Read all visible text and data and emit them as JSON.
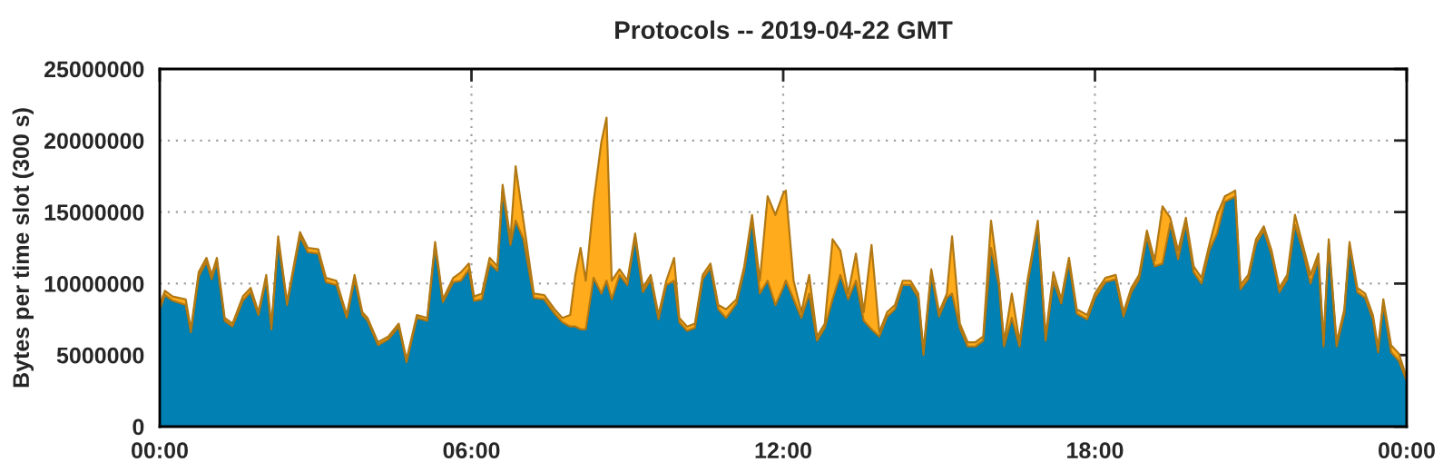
{
  "chart_data": {
    "type": "area",
    "stacked": true,
    "title": "Protocols -- 2019-04-22 GMT",
    "ylabel": "Bytes per time slot (300 s)",
    "x": [
      0,
      0.1,
      0.25,
      0.5,
      0.6,
      0.75,
      0.9,
      1.0,
      1.1,
      1.25,
      1.4,
      1.6,
      1.75,
      1.9,
      2.05,
      2.15,
      2.28,
      2.45,
      2.7,
      2.85,
      3.05,
      3.2,
      3.4,
      3.6,
      3.75,
      3.9,
      4.0,
      4.2,
      4.4,
      4.6,
      4.75,
      4.95,
      5.15,
      5.3,
      5.45,
      5.65,
      5.8,
      5.95,
      6.05,
      6.2,
      6.35,
      6.5,
      6.6,
      6.75,
      6.85,
      7.0,
      7.2,
      7.4,
      7.6,
      7.75,
      7.9,
      8.0,
      8.1,
      8.2,
      8.35,
      8.5,
      8.6,
      8.7,
      8.85,
      9.0,
      9.15,
      9.3,
      9.45,
      9.6,
      9.75,
      9.9,
      10.0,
      10.15,
      10.3,
      10.45,
      10.6,
      10.75,
      10.9,
      11.1,
      11.25,
      11.4,
      11.55,
      11.7,
      11.85,
      12.0,
      12.05,
      12.2,
      12.35,
      12.5,
      12.65,
      12.8,
      12.95,
      13.1,
      13.25,
      13.4,
      13.55,
      13.7,
      13.85,
      14.0,
      14.15,
      14.3,
      14.45,
      14.6,
      14.7,
      14.85,
      15.0,
      15.15,
      15.25,
      15.4,
      15.55,
      15.7,
      15.85,
      16.0,
      16.15,
      16.25,
      16.4,
      16.55,
      16.7,
      16.9,
      17.05,
      17.2,
      17.35,
      17.5,
      17.65,
      17.85,
      18.0,
      18.2,
      18.4,
      18.55,
      18.7,
      18.85,
      19.0,
      19.15,
      19.3,
      19.45,
      19.6,
      19.75,
      19.9,
      20.05,
      20.2,
      20.35,
      20.5,
      20.6,
      20.7,
      20.8,
      20.95,
      21.1,
      21.25,
      21.4,
      21.55,
      21.7,
      21.85,
      22.0,
      22.15,
      22.3,
      22.4,
      22.5,
      22.65,
      22.8,
      22.9,
      23.05,
      23.2,
      23.35,
      23.45,
      23.55,
      23.7,
      23.85,
      24
    ],
    "series": [
      {
        "color": "#0080b3",
        "values": [
          8200000,
          9200000,
          8800000,
          8500000,
          6600000,
          10500000,
          11500000,
          10300000,
          11500000,
          7400000,
          7000000,
          8800000,
          9400000,
          7800000,
          10300000,
          6800000,
          13000000,
          8500000,
          13300000,
          12200000,
          12100000,
          10100000,
          9900000,
          7600000,
          10300000,
          7800000,
          7400000,
          5700000,
          6100000,
          7000000,
          4500000,
          7600000,
          7400000,
          12600000,
          8700000,
          10100000,
          10200000,
          11000000,
          8800000,
          8900000,
          11400000,
          10900000,
          16500000,
          12700000,
          14400000,
          13100000,
          9000000,
          8900000,
          7900000,
          7300000,
          7000000,
          7000000,
          6800000,
          6800000,
          10400000,
          9300000,
          10200000,
          8900000,
          10600000,
          9900000,
          13200000,
          9400000,
          10300000,
          7500000,
          9900000,
          10200000,
          7300000,
          6700000,
          6900000,
          10300000,
          11100000,
          8200000,
          7600000,
          8600000,
          10900000,
          14500000,
          9300000,
          10200000,
          8500000,
          9700000,
          10200000,
          8900000,
          7600000,
          9300000,
          6000000,
          6900000,
          8900000,
          10600000,
          8900000,
          10200000,
          7400000,
          6800000,
          6300000,
          7700000,
          8200000,
          9900000,
          9900000,
          9000000,
          5000000,
          10700000,
          7700000,
          9000000,
          9300000,
          6900000,
          5600000,
          5600000,
          6000000,
          12500000,
          9900000,
          5600000,
          7600000,
          5600000,
          9900000,
          14100000,
          6000000,
          10200000,
          8600000,
          11500000,
          7900000,
          7500000,
          9000000,
          10100000,
          10300000,
          7700000,
          9400000,
          10300000,
          13300000,
          11200000,
          11400000,
          14200000,
          11700000,
          14200000,
          10800000,
          10000000,
          12300000,
          13500000,
          15700000,
          15900000,
          16100000,
          9600000,
          10300000,
          12800000,
          13700000,
          12000000,
          9400000,
          10300000,
          14100000,
          12300000,
          10000000,
          11700000,
          5600000,
          12800000,
          5600000,
          7900000,
          12600000,
          9400000,
          9000000,
          7500000,
          5200000,
          8600000,
          5200000,
          4600000,
          3200000
        ]
      },
      {
        "color": "#ffab1b",
        "values": [
          300000,
          300000,
          300000,
          400000,
          200000,
          300000,
          300000,
          300000,
          300000,
          200000,
          200000,
          300000,
          300000,
          200000,
          300000,
          200000,
          300000,
          200000,
          300000,
          300000,
          300000,
          300000,
          300000,
          200000,
          300000,
          200000,
          200000,
          200000,
          200000,
          200000,
          200000,
          200000,
          200000,
          300000,
          200000,
          300000,
          600000,
          400000,
          300000,
          400000,
          400000,
          300000,
          400000,
          400000,
          3800000,
          1300000,
          300000,
          300000,
          300000,
          300000,
          800000,
          3600000,
          5700000,
          3400000,
          5300000,
          10600000,
          11400000,
          1300000,
          400000,
          300000,
          300000,
          300000,
          300000,
          300000,
          300000,
          1600000,
          300000,
          300000,
          300000,
          300000,
          300000,
          300000,
          600000,
          300000,
          300000,
          300000,
          900000,
          5900000,
          6300000,
          6600000,
          6300000,
          1300000,
          400000,
          1300000,
          300000,
          300000,
          4200000,
          1700000,
          400000,
          1900000,
          600000,
          5900000,
          300000,
          300000,
          300000,
          300000,
          300000,
          300000,
          300000,
          300000,
          300000,
          300000,
          4000000,
          300000,
          300000,
          300000,
          300000,
          1900000,
          300000,
          300000,
          1700000,
          300000,
          300000,
          300000,
          300000,
          600000,
          300000,
          300000,
          300000,
          300000,
          300000,
          300000,
          300000,
          300000,
          300000,
          300000,
          400000,
          400000,
          4000000,
          400000,
          600000,
          400000,
          400000,
          400000,
          400000,
          1300000,
          400000,
          400000,
          400000,
          300000,
          300000,
          300000,
          300000,
          300000,
          300000,
          300000,
          700000,
          400000,
          600000,
          400000,
          300000,
          300000,
          300000,
          300000,
          300000,
          300000,
          300000,
          300000,
          300000,
          300000,
          500000,
          500000,
          200000
        ]
      }
    ],
    "xlim": [
      0,
      24
    ],
    "xticks": [
      {
        "value": 0,
        "label": "00:00"
      },
      {
        "value": 6,
        "label": "06:00"
      },
      {
        "value": 12,
        "label": "12:00"
      },
      {
        "value": 18,
        "label": "18:00"
      },
      {
        "value": 24,
        "label": "00:00"
      }
    ],
    "ylim": [
      0,
      25000000
    ],
    "yticks": [
      0,
      5000000,
      10000000,
      15000000,
      20000000,
      25000000
    ],
    "grid": true
  }
}
